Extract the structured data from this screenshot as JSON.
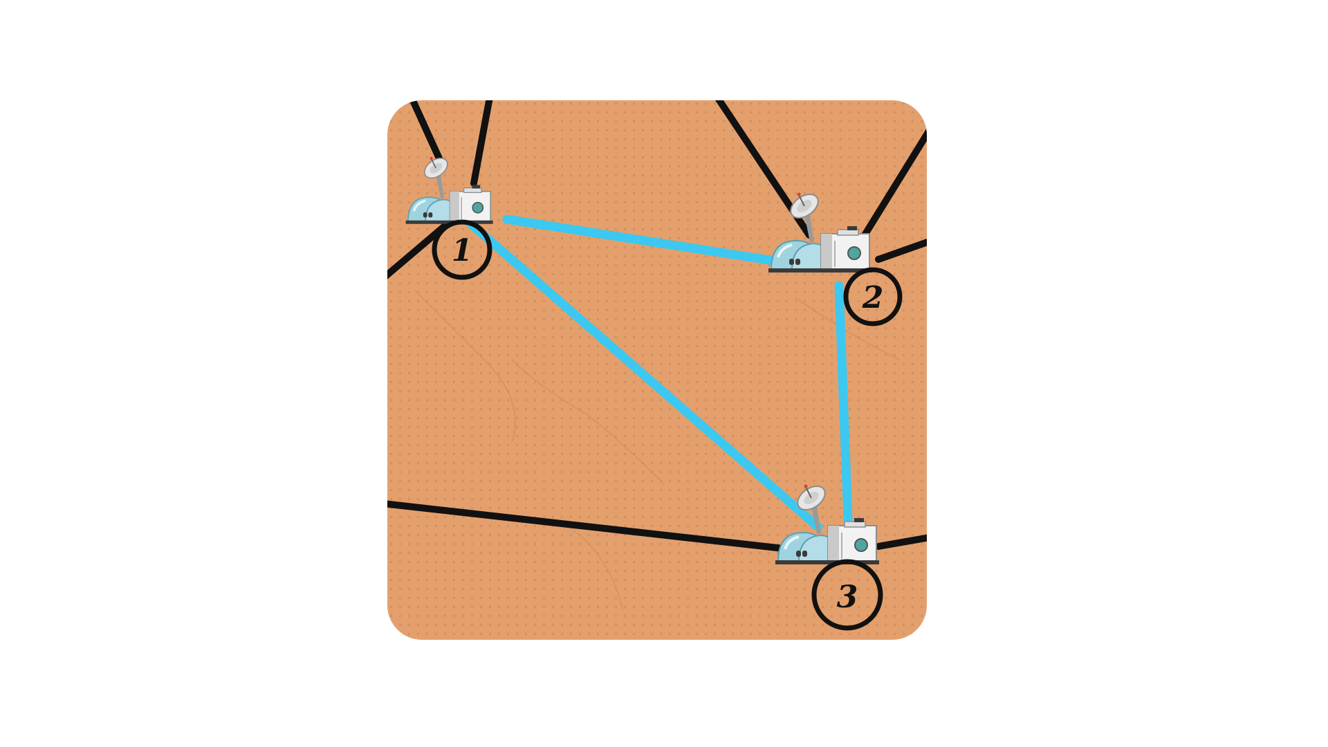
{
  "colors": {
    "ground": "#E3A06D",
    "ground_dot": "#D68E5C",
    "road": "#111111",
    "link": "#3CC8F0",
    "label_ring": "#111111",
    "dome": "#9FD3E0",
    "dome_dark": "#6FB3C6",
    "building": "#F2F2F2",
    "building_shade": "#C9C9C9",
    "panel": "#3A3A3A",
    "porthole": "#4FA6A0"
  },
  "stations": [
    {
      "id": "station-1",
      "label": "1",
      "icon": "space-base-icon"
    },
    {
      "id": "station-2",
      "label": "2",
      "icon": "space-base-icon"
    },
    {
      "id": "station-3",
      "label": "3",
      "icon": "space-base-icon"
    }
  ],
  "links": [
    {
      "from": "1",
      "to": "2"
    },
    {
      "from": "2",
      "to": "3"
    },
    {
      "from": "1",
      "to": "3"
    }
  ]
}
